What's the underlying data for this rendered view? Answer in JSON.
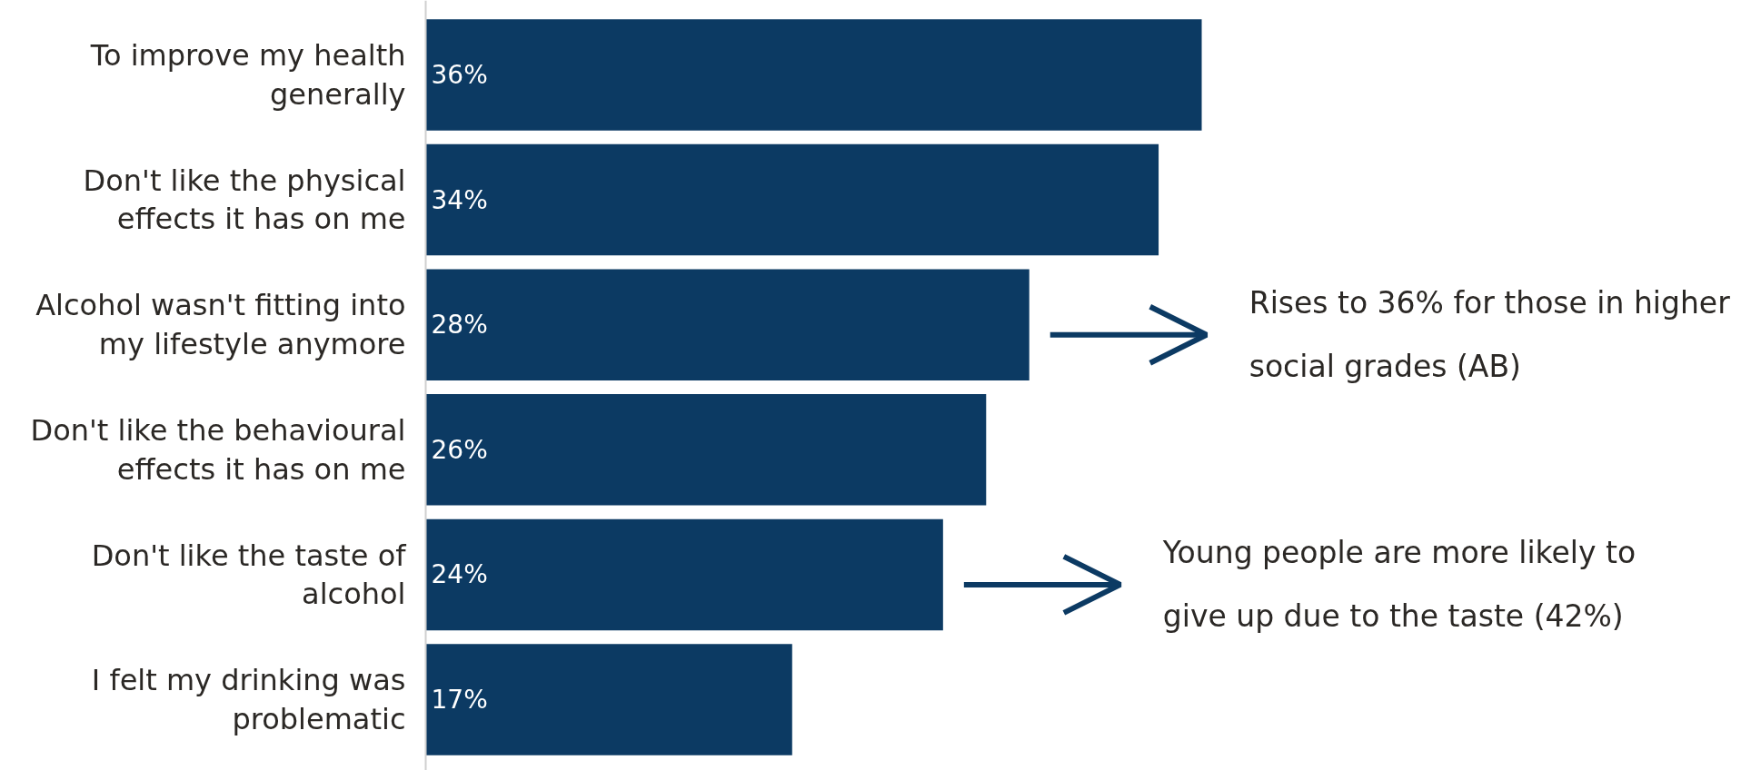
{
  "chart_data": {
    "type": "bar",
    "orientation": "horizontal",
    "tick_labels": "y",
    "color": "#0c3a63",
    "categories": [
      "To improve my health generally",
      "Don't like the physical effects it has on me",
      "Alcohol wasn't fitting into my lifestyle anymore",
      "Don't like the behavioural effects it has on me",
      "Don't like the taste of alcohol",
      "I felt my drinking was problematic"
    ],
    "values": [
      36,
      34,
      28,
      26,
      24,
      17
    ],
    "value_labels": [
      "36%",
      "34%",
      "28%",
      "26%",
      "24%",
      "17%"
    ],
    "annotations": [
      "Rises to 36% for those in higher social grades (AB)",
      "Young people are more likely to give up due to the taste (42%)"
    ]
  }
}
